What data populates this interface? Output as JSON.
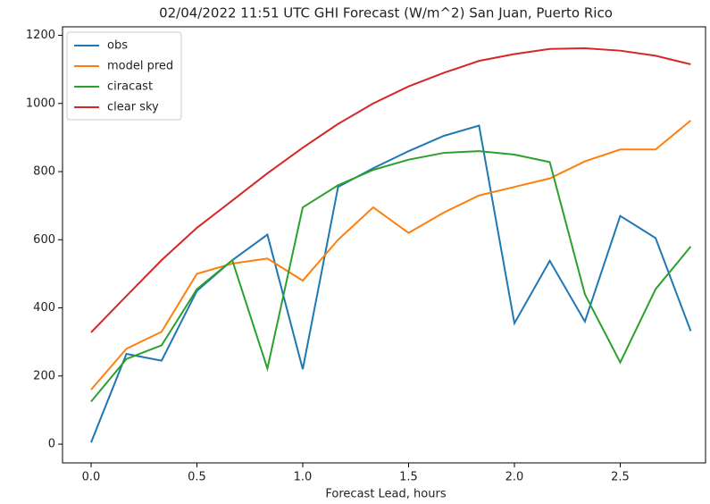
{
  "chart_data": {
    "type": "line",
    "title": "02/04/2022 11:51 UTC GHI Forecast (W/m^2) San Juan, Puerto Rico",
    "x_label": "Forecast Lead, hours",
    "x": [
      0,
      0.167,
      0.333,
      0.5,
      0.667,
      0.833,
      1.0,
      1.167,
      1.333,
      1.5,
      1.667,
      1.833,
      2.0,
      2.167,
      2.333,
      2.5,
      2.667,
      2.833
    ],
    "series": [
      {
        "name": "obs",
        "color": "#1f77b4",
        "values": [
          5,
          265,
          245,
          450,
          540,
          615,
          220,
          755,
          810,
          860,
          905,
          935,
          355,
          538,
          360,
          670,
          605,
          332
        ]
      },
      {
        "name": "model pred",
        "color": "#ff7f0e",
        "values": [
          160,
          280,
          330,
          500,
          530,
          545,
          480,
          600,
          695,
          620,
          680,
          730,
          755,
          780,
          830,
          865,
          865,
          950
        ]
      },
      {
        "name": "ciracast",
        "color": "#2ca02c",
        "values": [
          125,
          250,
          290,
          455,
          540,
          222,
          695,
          760,
          805,
          835,
          855,
          860,
          850,
          828,
          440,
          240,
          455,
          580
        ]
      },
      {
        "name": "clear sky",
        "color": "#d62728",
        "values": [
          328,
          435,
          540,
          635,
          715,
          795,
          870,
          940,
          1000,
          1050,
          1090,
          1125,
          1145,
          1160,
          1162,
          1155,
          1140,
          1115
        ]
      }
    ],
    "xlim": [
      -0.135,
      2.903
    ],
    "ylim": [
      -55,
      1225
    ],
    "xticks": [
      {
        "value": 0,
        "label": "0.0"
      },
      0.5,
      {
        "value": 1,
        "label": "1.0"
      },
      1.5,
      {
        "value": 2,
        "label": "2.0"
      },
      2.5
    ],
    "yticks": [
      0,
      200,
      400,
      600,
      800,
      1000,
      1200
    ],
    "legend": "upper left",
    "grid": false
  }
}
